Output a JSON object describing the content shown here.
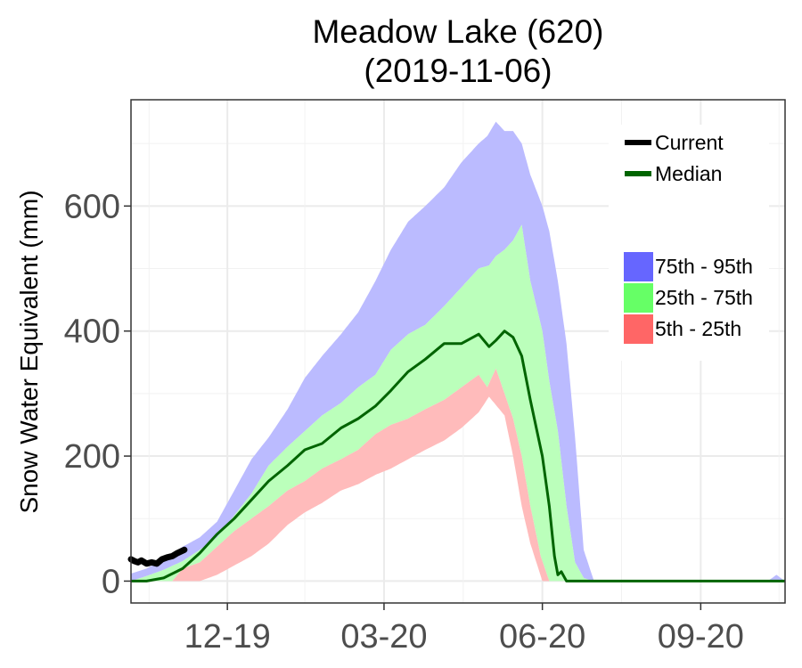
{
  "chart_data": {
    "type": "area",
    "title": "Meadow Lake (620)",
    "subtitle": "(2019-11-06)",
    "ylabel": "Snow Water Equivalent (mm)",
    "xlabel": "",
    "ylim": [
      -35,
      770
    ],
    "xlim": [
      "2019-10-06",
      "2020-10-20"
    ],
    "yticks": [
      0,
      200,
      400,
      600
    ],
    "ytick_labels": [
      "0",
      "200",
      "400",
      "600"
    ],
    "xticks": [
      "2019-12-01",
      "2020-03-01",
      "2020-06-01",
      "2020-09-01"
    ],
    "xtick_labels": [
      "12-19",
      "03-20",
      "06-20",
      "09-20"
    ],
    "grid": true,
    "legend_lines": [
      {
        "label": "Current",
        "color": "#000000"
      },
      {
        "label": "Median",
        "color": "#006400"
      }
    ],
    "legend_bands": [
      {
        "label": "75th - 95th",
        "color": "#6666ff"
      },
      {
        "label": "25th - 75th",
        "color": "#66ff66"
      },
      {
        "label": "5th - 25th",
        "color": "#ff6666"
      }
    ],
    "band_fills": {
      "p75_95": "#bbbbff",
      "p25_75": "#bbffbb",
      "p5_25": "#ffbbbb"
    },
    "series": [
      {
        "key": "p95",
        "x": [
          "2019-10-06",
          "2019-10-15",
          "2019-10-25",
          "2019-11-05",
          "2019-11-15",
          "2019-11-25",
          "2019-12-05",
          "2019-12-15",
          "2019-12-25",
          "2020-01-05",
          "2020-01-15",
          "2020-01-25",
          "2020-02-05",
          "2020-02-15",
          "2020-02-25",
          "2020-03-05",
          "2020-03-15",
          "2020-03-25",
          "2020-04-05",
          "2020-04-15",
          "2020-04-25",
          "2020-04-30",
          "2020-05-05",
          "2020-05-10",
          "2020-05-15",
          "2020-05-20",
          "2020-05-25",
          "2020-06-01",
          "2020-06-05",
          "2020-06-10",
          "2020-06-15",
          "2020-06-20",
          "2020-06-25",
          "2020-07-01",
          "2020-07-05",
          "2020-07-10",
          "2020-10-10",
          "2020-10-15",
          "2020-10-20"
        ],
        "y": [
          12,
          20,
          35,
          55,
          70,
          95,
          145,
          195,
          230,
          275,
          325,
          360,
          395,
          430,
          480,
          530,
          575,
          600,
          630,
          670,
          700,
          712,
          735,
          720,
          720,
          700,
          650,
          600,
          560,
          480,
          380,
          230,
          50,
          0,
          0,
          0,
          0,
          10,
          0
        ]
      },
      {
        "key": "p75",
        "x": [
          "2019-10-06",
          "2019-10-15",
          "2019-10-25",
          "2019-11-05",
          "2019-11-15",
          "2019-11-25",
          "2019-12-05",
          "2019-12-15",
          "2019-12-25",
          "2020-01-05",
          "2020-01-15",
          "2020-01-25",
          "2020-02-05",
          "2020-02-15",
          "2020-02-25",
          "2020-03-05",
          "2020-03-15",
          "2020-03-25",
          "2020-04-05",
          "2020-04-15",
          "2020-04-25",
          "2020-05-01",
          "2020-05-05",
          "2020-05-10",
          "2020-05-15",
          "2020-05-20",
          "2020-05-25",
          "2020-06-01",
          "2020-06-05",
          "2020-06-10",
          "2020-06-15",
          "2020-06-20",
          "2020-06-25",
          "2020-06-30",
          "2020-10-20"
        ],
        "y": [
          0,
          8,
          18,
          32,
          50,
          70,
          105,
          140,
          185,
          215,
          240,
          265,
          285,
          310,
          330,
          370,
          395,
          410,
          440,
          470,
          500,
          505,
          520,
          530,
          545,
          570,
          480,
          400,
          320,
          240,
          120,
          30,
          5,
          0,
          0
        ]
      },
      {
        "key": "median",
        "x": [
          "2019-10-06",
          "2019-10-15",
          "2019-10-25",
          "2019-11-05",
          "2019-11-15",
          "2019-11-25",
          "2019-12-05",
          "2019-12-15",
          "2019-12-25",
          "2020-01-05",
          "2020-01-15",
          "2020-01-25",
          "2020-02-05",
          "2020-02-15",
          "2020-02-25",
          "2020-03-05",
          "2020-03-15",
          "2020-03-25",
          "2020-04-05",
          "2020-04-15",
          "2020-04-25",
          "2020-05-01",
          "2020-05-05",
          "2020-05-10",
          "2020-05-15",
          "2020-05-20",
          "2020-05-25",
          "2020-06-01",
          "2020-06-05",
          "2020-06-08",
          "2020-06-10",
          "2020-06-12",
          "2020-06-15",
          "2020-10-20"
        ],
        "y": [
          0,
          0,
          5,
          20,
          45,
          75,
          100,
          130,
          160,
          185,
          210,
          220,
          245,
          260,
          280,
          305,
          335,
          355,
          380,
          380,
          395,
          375,
          385,
          400,
          390,
          360,
          290,
          200,
          120,
          40,
          10,
          15,
          0,
          0
        ]
      },
      {
        "key": "p25",
        "x": [
          "2019-10-06",
          "2019-10-30",
          "2019-11-05",
          "2019-11-15",
          "2019-11-25",
          "2019-12-05",
          "2019-12-15",
          "2019-12-25",
          "2020-01-05",
          "2020-01-15",
          "2020-01-25",
          "2020-02-05",
          "2020-02-15",
          "2020-02-25",
          "2020-03-05",
          "2020-03-15",
          "2020-03-25",
          "2020-04-05",
          "2020-04-15",
          "2020-04-25",
          "2020-04-30",
          "2020-05-05",
          "2020-05-10",
          "2020-05-15",
          "2020-05-20",
          "2020-05-25",
          "2020-05-31",
          "2020-06-05",
          "2020-10-20"
        ],
        "y": [
          0,
          0,
          20,
          30,
          55,
          80,
          100,
          120,
          145,
          160,
          180,
          195,
          210,
          235,
          250,
          260,
          275,
          290,
          310,
          330,
          310,
          340,
          300,
          260,
          200,
          120,
          40,
          0,
          0
        ]
      },
      {
        "key": "p5",
        "x": [
          "2019-10-06",
          "2019-11-15",
          "2019-11-25",
          "2019-12-05",
          "2019-12-15",
          "2019-12-25",
          "2020-01-05",
          "2020-01-15",
          "2020-01-25",
          "2020-02-05",
          "2020-02-15",
          "2020-02-25",
          "2020-03-05",
          "2020-03-15",
          "2020-03-25",
          "2020-04-05",
          "2020-04-15",
          "2020-04-25",
          "2020-05-01",
          "2020-05-10",
          "2020-05-15",
          "2020-05-20",
          "2020-05-25",
          "2020-06-01",
          "2020-10-20"
        ],
        "y": [
          0,
          0,
          10,
          25,
          40,
          60,
          90,
          110,
          125,
          145,
          155,
          170,
          180,
          195,
          210,
          225,
          245,
          270,
          295,
          265,
          200,
          120,
          60,
          0,
          0
        ]
      },
      {
        "key": "current",
        "name": "Current",
        "x": [
          "2019-10-06",
          "2019-10-08",
          "2019-10-10",
          "2019-10-12",
          "2019-10-15",
          "2019-10-18",
          "2019-10-21",
          "2019-10-24",
          "2019-10-27",
          "2019-10-30",
          "2019-11-02",
          "2019-11-06"
        ],
        "y": [
          35,
          32,
          30,
          33,
          28,
          30,
          28,
          35,
          38,
          40,
          45,
          50
        ]
      }
    ]
  }
}
